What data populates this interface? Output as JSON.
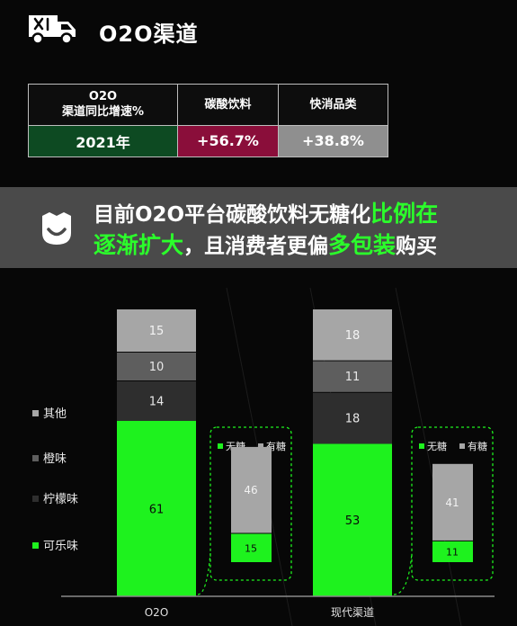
{
  "header": {
    "title": "O2O渠道",
    "icon": "delivery-truck-icon"
  },
  "growth_table": {
    "header_label": "O2O\n渠道同比增速%",
    "col1_header": "碳酸饮料",
    "col2_header": "快消品类",
    "row_label": "2021年",
    "col1_value": "+56.7%",
    "col2_value": "+38.8%",
    "colors": {
      "row_label_bg": "#0d4a22",
      "col1_bg": "#8a0e3a",
      "col2_bg": "#8f8f8f"
    }
  },
  "banner": {
    "icon": "smile-face-icon",
    "line1_a": "目前O2O平台碳酸饮料无糖化",
    "line1_b": "比例在",
    "line2_a": "逐渐扩大",
    "line2_b": "，且消费者更偏",
    "line2_c": "多包装",
    "line2_d": "购买",
    "highlight_color": "#2bff2b"
  },
  "chart_data": {
    "type": "bar",
    "stacked": true,
    "categories": [
      "O2O",
      "现代渠道"
    ],
    "legend_position": "left",
    "series": [
      {
        "name": "可乐味",
        "values": [
          61,
          53
        ],
        "color": "#1ef21e"
      },
      {
        "name": "柠檬味",
        "values": [
          14,
          18
        ],
        "color": "#2e2e2e"
      },
      {
        "name": "橙味",
        "values": [
          10,
          11
        ],
        "color": "#5e5e5e"
      },
      {
        "name": "其他",
        "values": [
          15,
          18
        ],
        "color": "#a6a6a6"
      }
    ],
    "sugar_breakdown": {
      "legend": [
        "无糖",
        "有糖"
      ],
      "colors": [
        "#1ef21e",
        "#a6a6a6"
      ],
      "values": [
        {
          "category": "O2O",
          "无糖": 15,
          "有糖": 46
        },
        {
          "category": "现代渠道",
          "无糖": 11,
          "有糖": 41
        }
      ]
    }
  }
}
